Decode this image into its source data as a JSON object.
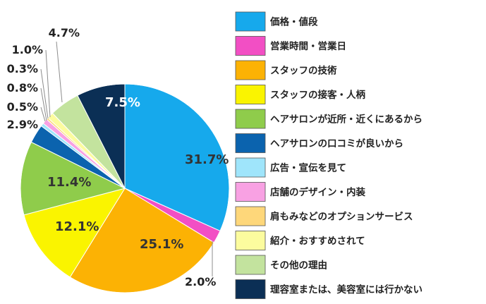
{
  "chart_data": {
    "type": "pie",
    "categories": [
      "価格・値段",
      "営業時間・営業日",
      "スタッフの技術",
      "スタッフの接客・人柄",
      "ヘアサロンが近所・近くにあるから",
      "ヘアサロンの口コミが良いから",
      "広告・宣伝を見て",
      "店舗のデザイン・内装",
      "肩もみなどのオプションサービス",
      "紹介・おすすめされて",
      "その他の理由",
      "理容室または、美容室には行かない"
    ],
    "values": [
      31.7,
      2.0,
      25.1,
      12.1,
      11.4,
      2.9,
      0.5,
      0.8,
      0.3,
      1.0,
      4.7,
      7.5
    ],
    "value_labels": [
      "31.7%",
      "2.0%",
      "25.1%",
      "12.1%",
      "11.4%",
      "2.9%",
      "0.5%",
      "0.8%",
      "0.3%",
      "1.0%",
      "4.7%",
      "7.5%"
    ],
    "colors": [
      "#16a9ec",
      "#f24fc4",
      "#fcb204",
      "#faf400",
      "#8fcc4b",
      "#0b63ae",
      "#9fe5fb",
      "#f8a1e3",
      "#fed77a",
      "#fcfc9e",
      "#c3e39e",
      "#0b2f55"
    ],
    "start_angle": "top, clockwise",
    "legend_position": "right"
  }
}
